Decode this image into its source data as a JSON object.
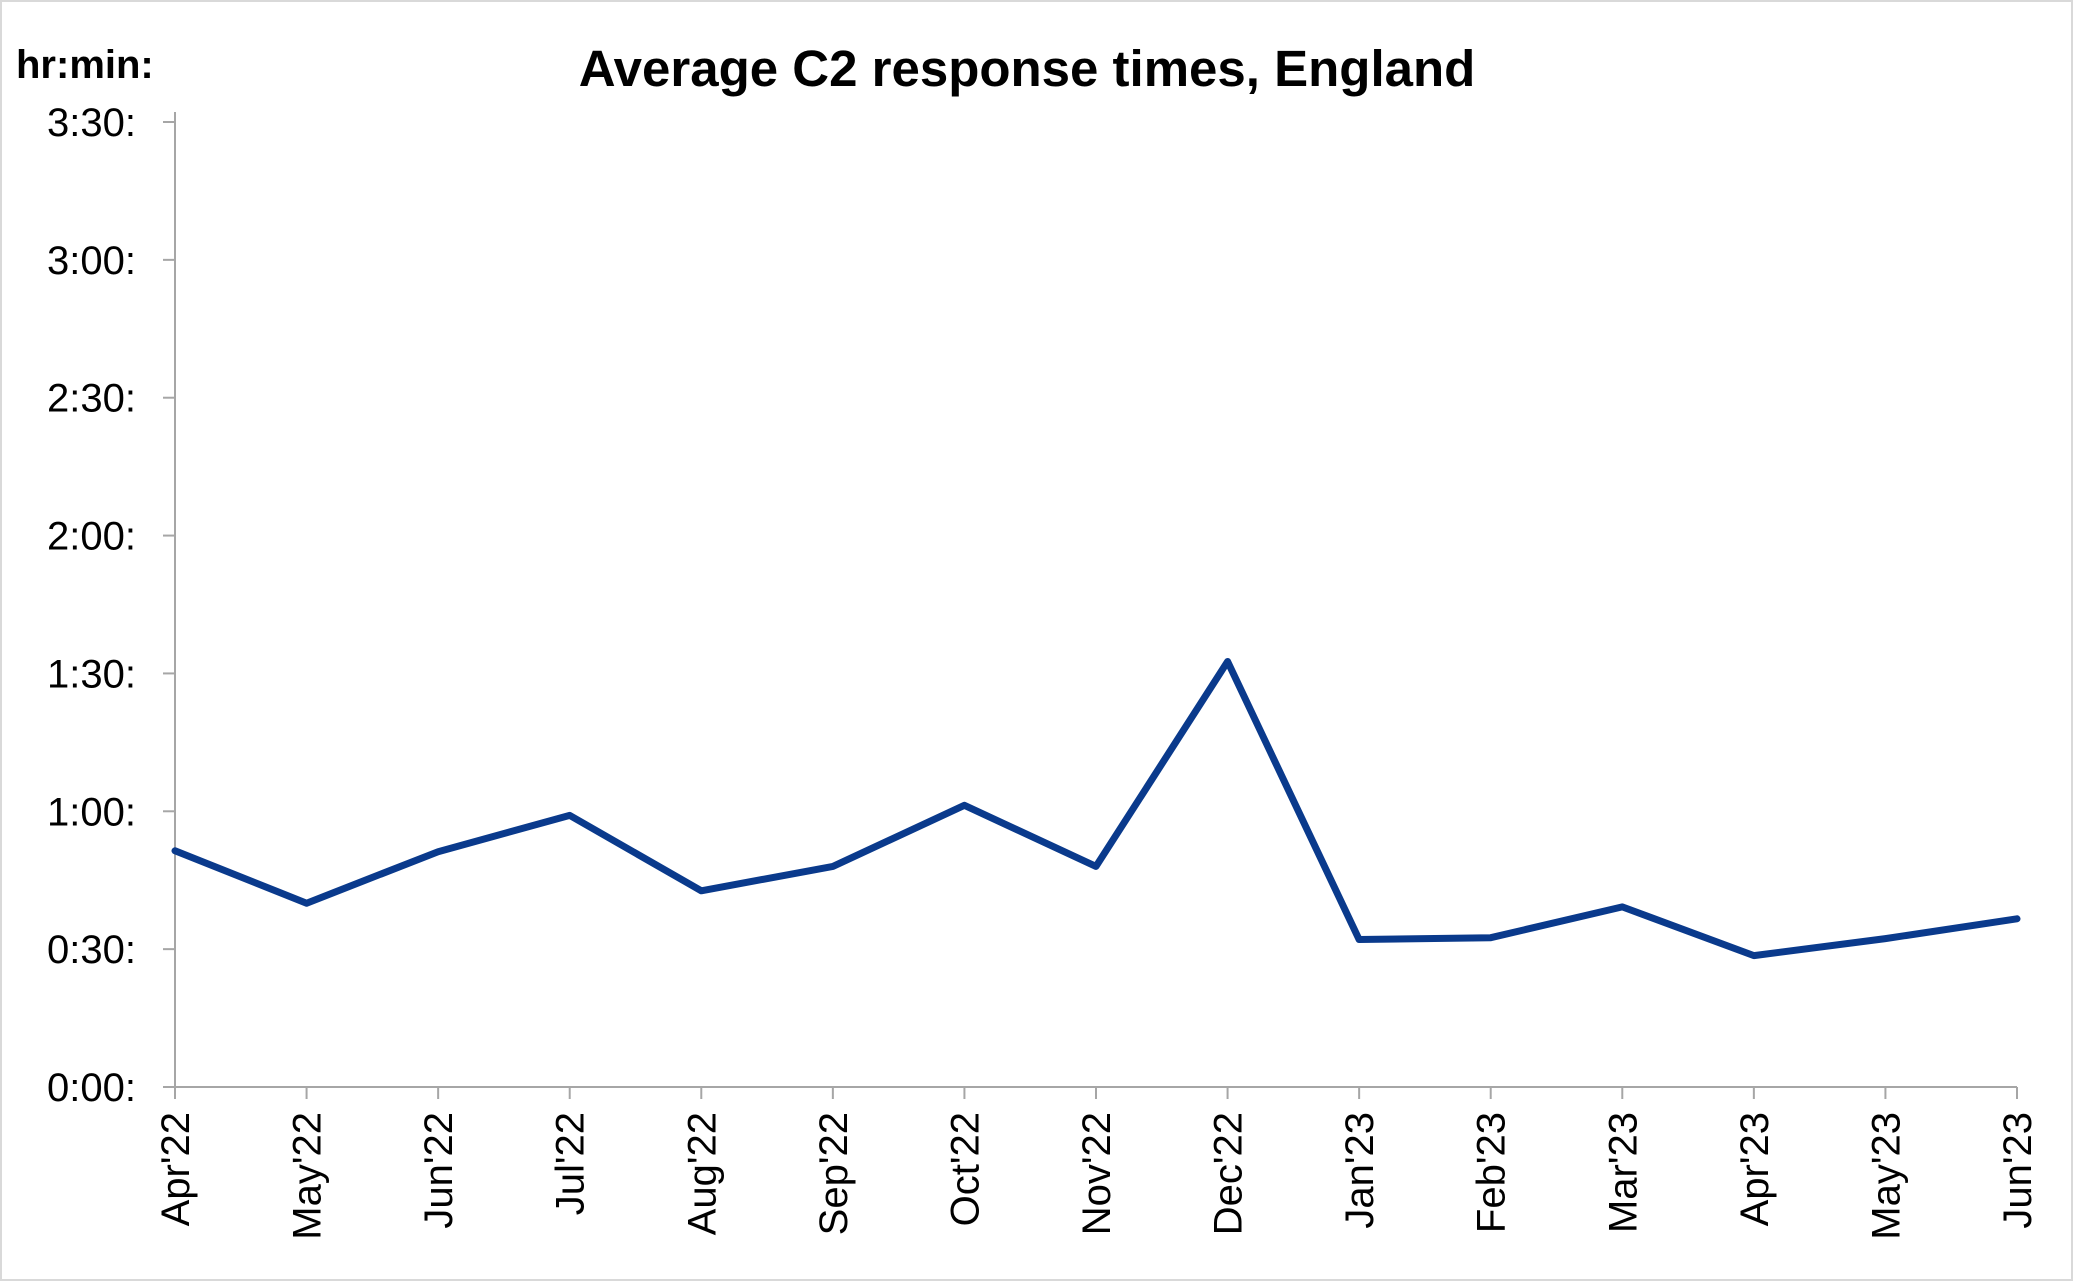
{
  "chart_data": {
    "type": "line",
    "title": "Average C2 response times, England",
    "ylabel": "hr:min:",
    "xlabel": "",
    "categories": [
      "Apr'22",
      "May'22",
      "Jun'22",
      "Jul'22",
      "Aug'22",
      "Sep'22",
      "Oct'22",
      "Nov'22",
      "Dec'22",
      "Jan'23",
      "Feb'23",
      "Mar'23",
      "Apr'23",
      "May'23",
      "Jun'23"
    ],
    "ytick_labels": [
      "0:00:",
      "0:30:",
      "1:00:",
      "1:30:",
      "2:00:",
      "2:30:",
      "3:00:",
      "3:30:"
    ],
    "ylim": [
      0,
      210
    ],
    "ytick_step_minutes": 30,
    "grid": false,
    "series": [
      {
        "values_minutes": [
          51.4,
          40.0,
          51.2,
          59.1,
          42.7,
          48.0,
          61.3,
          48.0,
          92.6,
          32.1,
          32.5,
          39.2,
          28.6,
          32.3,
          36.6
        ],
        "color": "#0a3a8c"
      }
    ]
  }
}
